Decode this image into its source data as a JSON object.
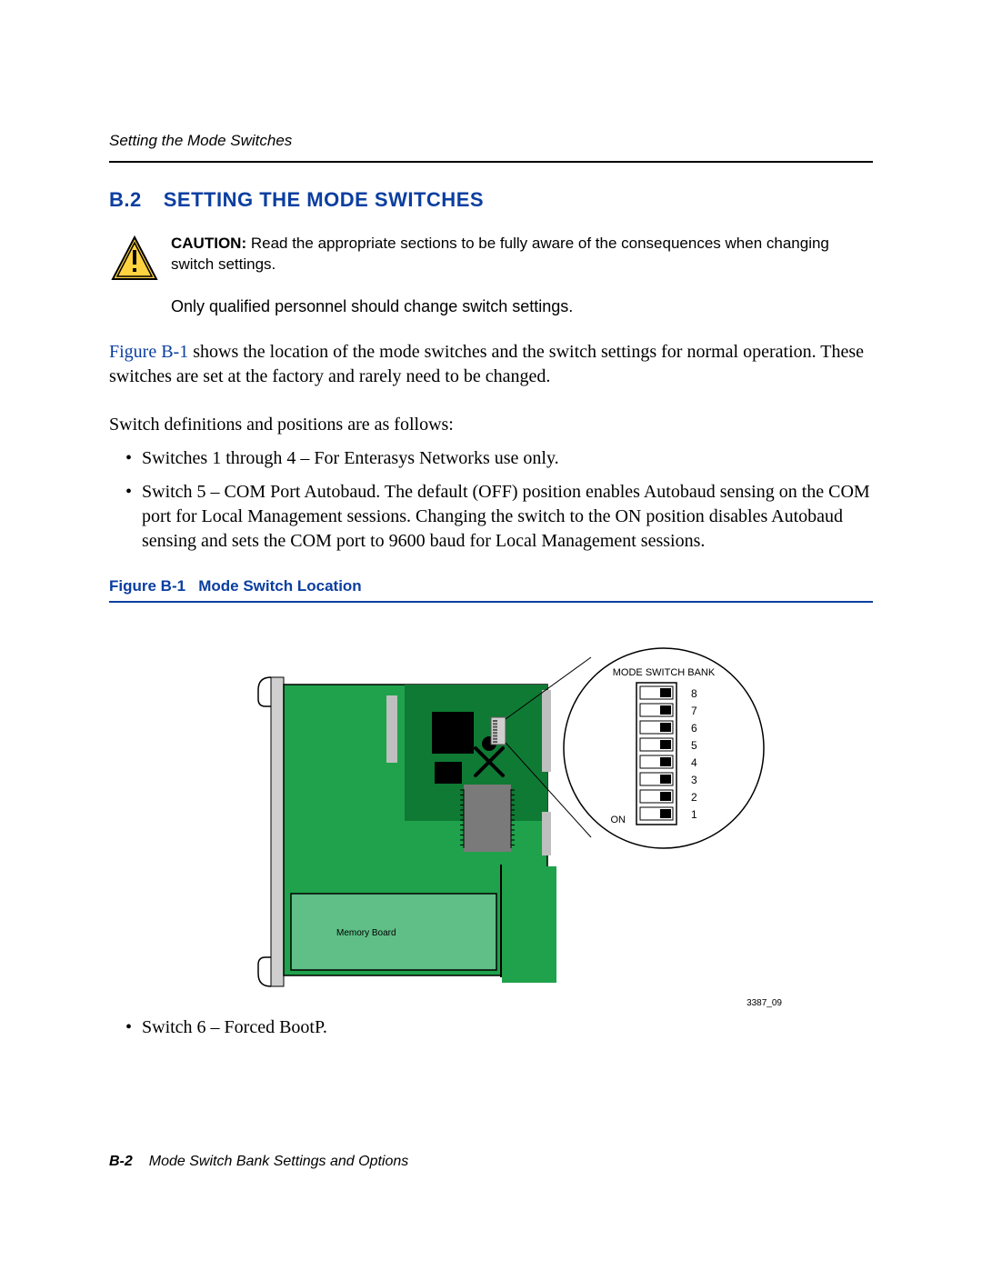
{
  "colors": {
    "heading_blue": "#0b3ea0",
    "caution_yellow": "#ffd23f",
    "caution_border": "#000000",
    "board_green": "#1fa24b",
    "board_dark_green": "#0f7a34",
    "memory_green": "#5fbf87",
    "chip_black": "#000000",
    "chip_gray": "#bfbfbf",
    "chip_dark_gray": "#7a7a7a",
    "bracket_gray": "#cfcfcf",
    "rule_black": "#000000",
    "text_black": "#000000",
    "white": "#ffffff"
  },
  "header": {
    "running": "Setting the Mode Switches"
  },
  "section": {
    "num": "B.2",
    "title": "SETTING THE MODE SWITCHES"
  },
  "caution": {
    "label": "CAUTION:",
    "text": "Read the appropriate sections to be fully aware of the consequences when changing switch settings.",
    "subtext": "Only qualified personnel should change switch settings."
  },
  "p1": {
    "figref": "Figure B-1",
    "rest": " shows the location of the mode switches and the switch settings for normal operation. These switches are set at the factory and rarely need to be changed."
  },
  "p2": "Switch definitions and positions are as follows:",
  "bullets_top": [
    "Switches 1 through 4 – For Enterasys Networks use only.",
    "Switch 5 – COM Port Autobaud. The default (OFF) position enables Autobaud sensing on the COM port for Local Management sessions. Changing the switch to the ON position disables Autobaud sensing and sets the COM port to 9600 baud for Local Management sessions."
  ],
  "figure": {
    "caption_num": "Figure B-1",
    "caption_title": "Mode Switch Location",
    "bank_label": "MODE SWITCH BANK",
    "on_label": "ON",
    "memory_label": "Memory Board",
    "switch_numbers": [
      "8",
      "7",
      "6",
      "5",
      "4",
      "3",
      "2",
      "1"
    ],
    "id": "3387_09",
    "switches": [
      {
        "n": "8",
        "pos": "off"
      },
      {
        "n": "7",
        "pos": "off"
      },
      {
        "n": "6",
        "pos": "off"
      },
      {
        "n": "5",
        "pos": "off"
      },
      {
        "n": "4",
        "pos": "off"
      },
      {
        "n": "3",
        "pos": "off"
      },
      {
        "n": "2",
        "pos": "off"
      },
      {
        "n": "1",
        "pos": "off"
      }
    ]
  },
  "bullets_bottom": [
    "Switch 6 – Forced BootP."
  ],
  "footer": {
    "page": "B-2",
    "title": "Mode Switch Bank Settings and Options"
  }
}
